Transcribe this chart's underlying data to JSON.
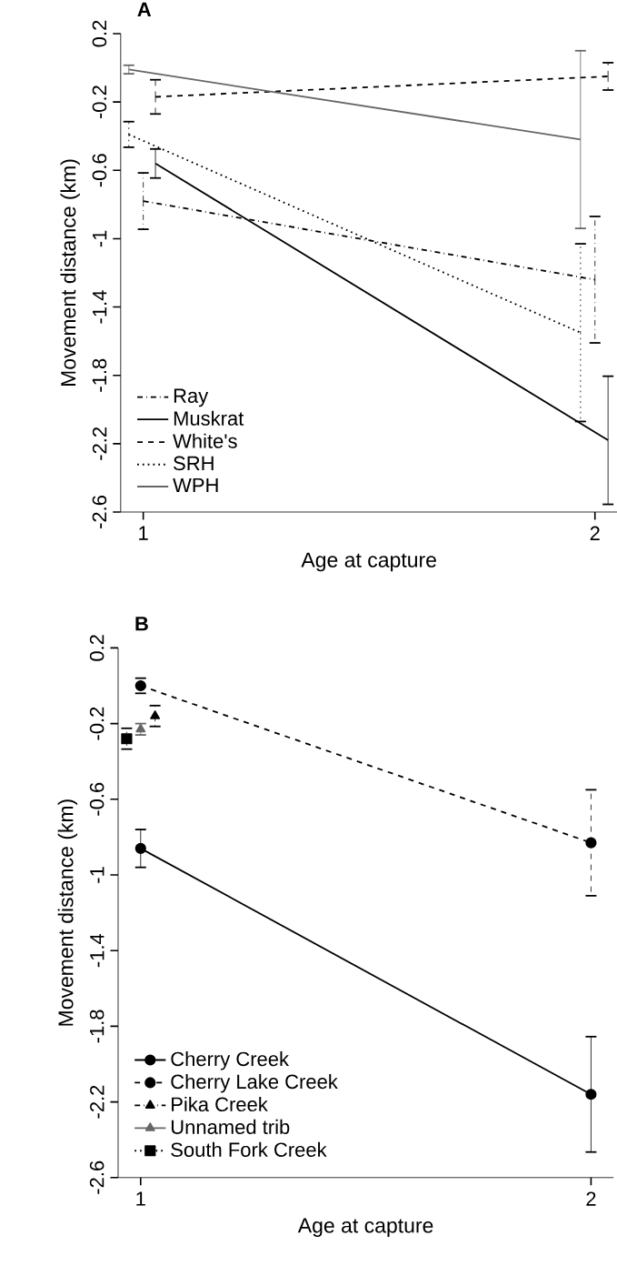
{
  "chart_data": [
    {
      "type": "line",
      "title": "A",
      "xlabel": "Age at capture",
      "ylabel": "Movement distance (km)",
      "xlim": [
        0.95,
        2.05
      ],
      "xticks": [
        1,
        2
      ],
      "ylim": [
        -2.6,
        0.2
      ],
      "yticks": [
        0.2,
        -0.2,
        -0.6,
        -1,
        -1.4,
        -1.8,
        -2.2,
        -2.6
      ],
      "legend": "bottom left",
      "marker": "none",
      "series": [
        {
          "name": "Ray",
          "color": "#000000",
          "line_style": "dashdot",
          "x": [
            1.0,
            2.0
          ],
          "values": [
            -0.78,
            -1.24
          ],
          "errors": [
            0.165,
            0.37
          ]
        },
        {
          "name": "Muskrat",
          "color": "#000000",
          "line_style": "solid",
          "x": [
            1.027,
            2.029
          ],
          "values": [
            -0.56,
            -2.18
          ],
          "errors": [
            0.085,
            0.375
          ]
        },
        {
          "name": "White's",
          "color": "#000000",
          "line_style": "dashed",
          "x": [
            1.027,
            2.029
          ],
          "values": [
            -0.17,
            -0.05
          ],
          "errors": [
            0.1,
            0.08
          ]
        },
        {
          "name": "SRH",
          "color": "#000000",
          "line_style": "dotted",
          "x": [
            0.968,
            1.968
          ],
          "values": [
            -0.39,
            -1.55
          ],
          "errors": [
            0.075,
            0.52
          ]
        },
        {
          "name": "WPH",
          "color": "#666666",
          "line_style": "solid",
          "x": [
            0.968,
            1.968
          ],
          "values": [
            -0.01,
            -0.42
          ],
          "errors": [
            0.025,
            0.52
          ]
        }
      ]
    },
    {
      "type": "line",
      "title": "B",
      "xlabel": "Age at capture",
      "ylabel": "Movement distance (km)",
      "xlim": [
        0.95,
        2.05
      ],
      "xticks": [
        1,
        2
      ],
      "ylim": [
        -2.6,
        0.2
      ],
      "yticks": [
        0.2,
        -0.2,
        -0.6,
        -1,
        -1.4,
        -1.8,
        -2.2,
        -2.6
      ],
      "legend": "bottom left",
      "series": [
        {
          "name": "Cherry Creek",
          "color": "#000000",
          "line_style": "solid",
          "marker": "circle",
          "x": [
            1.0,
            2.0
          ],
          "values": [
            -0.86,
            -2.16
          ],
          "errors": [
            0.1,
            0.305
          ]
        },
        {
          "name": "Cherry Lake Creek",
          "color": "#000000",
          "line_style": "dashed",
          "marker": "circle",
          "x": [
            1.0,
            2.0
          ],
          "values": [
            0.0,
            -0.83
          ],
          "errors": [
            0.04,
            0.28
          ]
        },
        {
          "name": "Pika Creek",
          "color": "#000000",
          "line_style": "dashdot",
          "marker": "triangle",
          "x": [
            1.032
          ],
          "values": [
            -0.16
          ],
          "errors": [
            0.055
          ]
        },
        {
          "name": "Unnamed trib",
          "color": "#666666",
          "line_style": "solid",
          "marker": "triangle",
          "x": [
            1.0
          ],
          "values": [
            -0.23
          ],
          "errors": [
            0.03
          ]
        },
        {
          "name": "South Fork Creek",
          "color": "#000000",
          "line_style": "dotted",
          "marker": "square",
          "x": [
            0.969
          ],
          "values": [
            -0.28
          ],
          "errors": [
            0.055
          ]
        }
      ]
    }
  ]
}
